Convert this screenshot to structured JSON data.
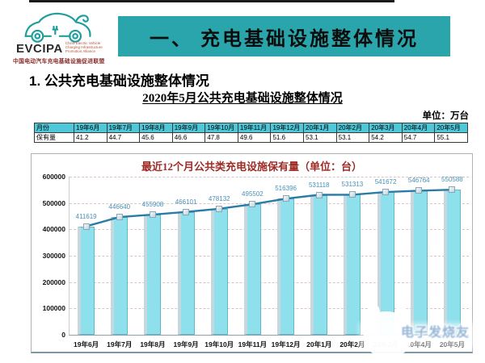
{
  "logo": {
    "name": "EVCIPA",
    "en": "China Electric Vehicle\nCharging Infrastructure\nPromotion Alliance",
    "cn": "中国电动汽车充电基础设施促进联盟",
    "accent_color": "#1f9e9e"
  },
  "header": {
    "section_title": "一、 充电基础设施整体情况",
    "subsection_title": "1. 公共充电基础设施整体情况",
    "banner_color": "#29a5ab"
  },
  "table": {
    "title": "2020年5月公共充电基础设施整体情况",
    "unit_label": "单位：万台",
    "header_bg": "#4ec7d9",
    "header_row": [
      "月份",
      "19年6月",
      "19年7月",
      "19年8月",
      "19年9月",
      "19年10月",
      "19年11月",
      "19年12月",
      "20年1月",
      "20年2月",
      "20年3月",
      "20年4月",
      "20年5月"
    ],
    "data_row": [
      "保有量",
      "41.2",
      "44.7",
      "45.6",
      "46.6",
      "47.8",
      "49.6",
      "51.6",
      "53.1",
      "53.1",
      "54.2",
      "54.7",
      "55.1"
    ]
  },
  "chart_data": {
    "type": "bar",
    "overlay": "line",
    "title": "最近12个月公共类充电设施保有量（单位：台）",
    "title_color": "#9e2b25",
    "categories": [
      "19年6月",
      "19年7月",
      "19年8月",
      "19年9月",
      "19年10月",
      "19年11月",
      "19年12月",
      "20年1月",
      "20年2月",
      "20年3月",
      "20年4月",
      "20年5月"
    ],
    "values": [
      411619,
      446640,
      455908,
      466101,
      478132,
      495502,
      516396,
      531118,
      531313,
      541672,
      546764,
      550588
    ],
    "ylim": [
      0,
      600000
    ],
    "ytick_step": 100000,
    "grid": "dashed-horizontal",
    "legend": "none",
    "bar_color": "#8ee0ec",
    "line_color": "#2a7ba6",
    "label_color": "#4a90b8"
  },
  "watermark": {
    "text": "电子发烧友"
  }
}
